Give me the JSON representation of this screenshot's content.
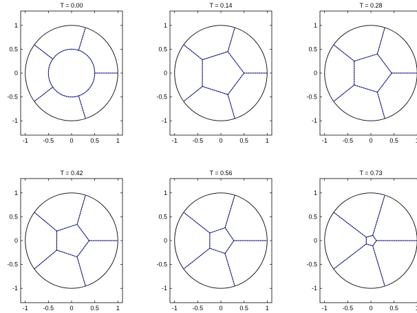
{
  "chart_data": [
    {
      "type": "line",
      "title": "T = 0.00",
      "xlim": [
        -1.1,
        1.1
      ],
      "ylim": [
        -1.3,
        1.3
      ],
      "xticks": [
        -1,
        -0.5,
        0,
        0.5,
        1
      ],
      "xtick_labels": [
        "-1",
        "-0.5",
        "0",
        "0.5",
        "1"
      ],
      "yticks": [
        1,
        0.5,
        0,
        -0.5,
        -1
      ],
      "ytick_labels": [
        "1",
        "0.5",
        "0",
        "-0.5",
        "-1"
      ],
      "outer_circle_radius": 1.0,
      "series": [
        {
          "kind": "core-circle",
          "radius": 0.5
        },
        {
          "kind": "spoke",
          "points": [
            [
              0.5,
              0.0
            ],
            [
              1.0,
              0.0
            ]
          ]
        },
        {
          "kind": "spoke",
          "points": [
            [
              0.15,
              0.47
            ],
            [
              0.3,
              0.95
            ]
          ]
        },
        {
          "kind": "spoke",
          "points": [
            [
              -0.4,
              0.29
            ],
            [
              -0.8,
              0.59
            ]
          ]
        },
        {
          "kind": "spoke",
          "points": [
            [
              -0.4,
              -0.29
            ],
            [
              -0.8,
              -0.59
            ]
          ]
        },
        {
          "kind": "spoke",
          "points": [
            [
              0.15,
              -0.47
            ],
            [
              0.3,
              -0.95
            ]
          ]
        }
      ]
    },
    {
      "type": "line",
      "title": "T = 0.14",
      "xlim": [
        -1.1,
        1.1
      ],
      "ylim": [
        -1.3,
        1.3
      ],
      "xticks": [
        -1,
        -0.5,
        0,
        0.5,
        1
      ],
      "xtick_labels": [
        "-1",
        "-0.5",
        "0",
        "0.5",
        "1"
      ],
      "yticks": [
        1,
        0.5,
        0,
        -0.5,
        -1
      ],
      "ytick_labels": [
        "1",
        "0.5",
        "0",
        "-0.5",
        "-1"
      ],
      "outer_circle_radius": 1.0,
      "series": [
        {
          "kind": "polygon",
          "points": [
            [
              0.5,
              0.0
            ],
            [
              0.15,
              0.45
            ],
            [
              -0.4,
              0.28
            ],
            [
              -0.4,
              -0.28
            ],
            [
              0.15,
              -0.45
            ]
          ]
        },
        {
          "kind": "spoke",
          "points": [
            [
              0.5,
              0.0
            ],
            [
              1.0,
              0.0
            ]
          ]
        },
        {
          "kind": "spoke",
          "points": [
            [
              0.15,
              0.45
            ],
            [
              0.3,
              0.95
            ]
          ]
        },
        {
          "kind": "spoke",
          "points": [
            [
              -0.4,
              0.28
            ],
            [
              -0.8,
              0.59
            ]
          ]
        },
        {
          "kind": "spoke",
          "points": [
            [
              -0.4,
              -0.28
            ],
            [
              -0.8,
              -0.59
            ]
          ]
        },
        {
          "kind": "spoke",
          "points": [
            [
              0.15,
              -0.45
            ],
            [
              0.3,
              -0.95
            ]
          ]
        }
      ]
    },
    {
      "type": "line",
      "title": "T = 0.28",
      "xlim": [
        -1.1,
        1.1
      ],
      "ylim": [
        -1.3,
        1.3
      ],
      "xticks": [
        -1,
        -0.5,
        0,
        0.5,
        1
      ],
      "xtick_labels": [
        "-1",
        "-0.5",
        "0",
        "0.5",
        "1"
      ],
      "yticks": [
        1,
        0.5,
        0,
        -0.5,
        -1
      ],
      "ytick_labels": [
        "1",
        "0.5",
        "0",
        "-0.5",
        "-1"
      ],
      "outer_circle_radius": 1.0,
      "series": [
        {
          "kind": "polygon",
          "points": [
            [
              0.45,
              0.0
            ],
            [
              0.14,
              0.4
            ],
            [
              -0.36,
              0.25
            ],
            [
              -0.36,
              -0.25
            ],
            [
              0.14,
              -0.4
            ]
          ]
        },
        {
          "kind": "spoke",
          "points": [
            [
              0.45,
              0.0
            ],
            [
              1.0,
              0.0
            ]
          ]
        },
        {
          "kind": "spoke",
          "points": [
            [
              0.14,
              0.4
            ],
            [
              0.3,
              0.95
            ]
          ]
        },
        {
          "kind": "spoke",
          "points": [
            [
              -0.36,
              0.25
            ],
            [
              -0.8,
              0.59
            ]
          ]
        },
        {
          "kind": "spoke",
          "points": [
            [
              -0.36,
              -0.25
            ],
            [
              -0.8,
              -0.59
            ]
          ]
        },
        {
          "kind": "spoke",
          "points": [
            [
              0.14,
              -0.4
            ],
            [
              0.3,
              -0.95
            ]
          ]
        }
      ]
    },
    {
      "type": "line",
      "title": "T = 0.42",
      "xlim": [
        -1.1,
        1.1
      ],
      "ylim": [
        -1.3,
        1.3
      ],
      "xticks": [
        -1,
        -0.5,
        0,
        0.5,
        1
      ],
      "xtick_labels": [
        "-1",
        "-0.5",
        "0",
        "0.5",
        "1"
      ],
      "yticks": [
        1,
        0.5,
        0,
        -0.5,
        -1
      ],
      "ytick_labels": [
        "1",
        "0.5",
        "0",
        "-0.5",
        "-1"
      ],
      "outer_circle_radius": 1.0,
      "series": [
        {
          "kind": "polygon",
          "points": [
            [
              0.38,
              0.0
            ],
            [
              0.12,
              0.34
            ],
            [
              -0.32,
              0.2
            ],
            [
              -0.32,
              -0.2
            ],
            [
              0.12,
              -0.34
            ]
          ]
        },
        {
          "kind": "spoke",
          "points": [
            [
              0.38,
              0.0
            ],
            [
              1.0,
              0.0
            ]
          ]
        },
        {
          "kind": "spoke",
          "points": [
            [
              0.12,
              0.34
            ],
            [
              0.3,
              0.95
            ]
          ]
        },
        {
          "kind": "spoke",
          "points": [
            [
              -0.32,
              0.2
            ],
            [
              -0.8,
              0.59
            ]
          ]
        },
        {
          "kind": "spoke",
          "points": [
            [
              -0.32,
              -0.2
            ],
            [
              -0.8,
              -0.59
            ]
          ]
        },
        {
          "kind": "spoke",
          "points": [
            [
              0.12,
              -0.34
            ],
            [
              0.3,
              -0.95
            ]
          ]
        }
      ]
    },
    {
      "type": "line",
      "title": "T = 0.56",
      "xlim": [
        -1.1,
        1.1
      ],
      "ylim": [
        -1.3,
        1.3
      ],
      "xticks": [
        -1,
        -0.5,
        0,
        0.5,
        1
      ],
      "xtick_labels": [
        "-1",
        "-0.5",
        "0",
        "0.5",
        "1"
      ],
      "yticks": [
        1,
        0.5,
        0,
        -0.5,
        -1
      ],
      "ytick_labels": [
        "1",
        "0.5",
        "0",
        "-0.5",
        "-1"
      ],
      "outer_circle_radius": 1.0,
      "series": [
        {
          "kind": "polygon",
          "points": [
            [
              0.28,
              0.0
            ],
            [
              0.09,
              0.27
            ],
            [
              -0.24,
              0.16
            ],
            [
              -0.24,
              -0.16
            ],
            [
              0.09,
              -0.27
            ]
          ]
        },
        {
          "kind": "spoke",
          "points": [
            [
              0.28,
              0.0
            ],
            [
              1.0,
              0.0
            ]
          ]
        },
        {
          "kind": "spoke",
          "points": [
            [
              0.09,
              0.27
            ],
            [
              0.3,
              0.95
            ]
          ]
        },
        {
          "kind": "spoke",
          "points": [
            [
              -0.24,
              0.16
            ],
            [
              -0.8,
              0.59
            ]
          ]
        },
        {
          "kind": "spoke",
          "points": [
            [
              -0.24,
              -0.16
            ],
            [
              -0.8,
              -0.59
            ]
          ]
        },
        {
          "kind": "spoke",
          "points": [
            [
              0.09,
              -0.27
            ],
            [
              0.3,
              -0.95
            ]
          ]
        }
      ]
    },
    {
      "type": "line",
      "title": "T = 0.73",
      "xlim": [
        -1.1,
        1.1
      ],
      "ylim": [
        -1.3,
        1.3
      ],
      "xticks": [
        -1,
        -0.5,
        0,
        0.5,
        1
      ],
      "xtick_labels": [
        "-1",
        "-0.5",
        "0",
        "0.5",
        "1"
      ],
      "yticks": [
        1,
        0.5,
        0,
        -0.5,
        -1
      ],
      "ytick_labels": [
        "1",
        "0.5",
        "0",
        "-0.5",
        "-1"
      ],
      "outer_circle_radius": 1.0,
      "series": [
        {
          "kind": "polygon",
          "points": [
            [
              0.12,
              0.0
            ],
            [
              0.04,
              0.11
            ],
            [
              -0.1,
              0.07
            ],
            [
              -0.1,
              -0.07
            ],
            [
              0.04,
              -0.11
            ]
          ]
        },
        {
          "kind": "spoke",
          "points": [
            [
              0.12,
              0.0
            ],
            [
              1.0,
              0.0
            ]
          ]
        },
        {
          "kind": "spoke",
          "points": [
            [
              0.04,
              0.11
            ],
            [
              0.3,
              0.95
            ]
          ]
        },
        {
          "kind": "spoke",
          "points": [
            [
              -0.1,
              0.07
            ],
            [
              -0.8,
              0.59
            ]
          ]
        },
        {
          "kind": "spoke",
          "points": [
            [
              -0.1,
              -0.07
            ],
            [
              -0.8,
              -0.59
            ]
          ]
        },
        {
          "kind": "spoke",
          "points": [
            [
              0.04,
              -0.11
            ],
            [
              0.3,
              -0.95
            ]
          ]
        }
      ]
    }
  ],
  "colors": {
    "front_line": "#3333dd",
    "front_dots": "#000000",
    "axes": "#000000",
    "background": "#ffffff"
  }
}
